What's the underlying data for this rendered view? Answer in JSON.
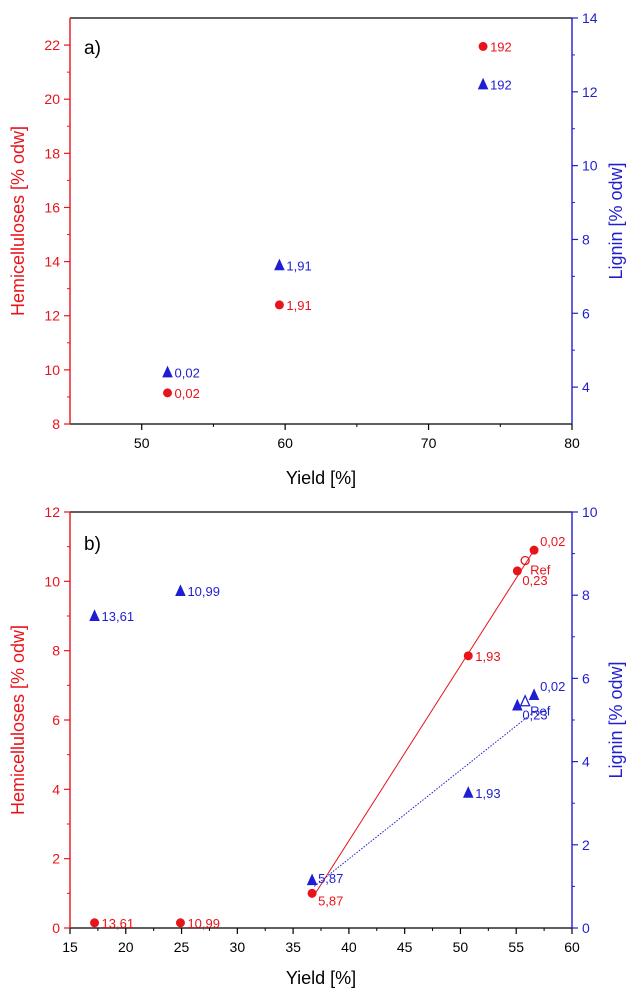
{
  "chart_data": [
    {
      "type": "scatter",
      "panel_label": "a)",
      "xlabel": "Yield [%]",
      "ylabel_left": "Hemicelluloses [% odw]",
      "ylabel_right": "Lignin [% odw]",
      "xlim": [
        45,
        80
      ],
      "ylim_left": [
        8,
        23
      ],
      "ylim_right": [
        3,
        14
      ],
      "x_ticks": [
        50,
        60,
        70,
        80
      ],
      "y_left_ticks": [
        8,
        10,
        12,
        14,
        16,
        18,
        20,
        22
      ],
      "y_right_ticks": [
        4,
        6,
        8,
        10,
        12,
        14
      ],
      "colors": {
        "left": "#e8141b",
        "right": "#1f1fd1",
        "axis": "#000000"
      },
      "series": [
        {
          "axis": "left",
          "marker": "circle",
          "points": [
            {
              "x": 51.8,
              "y": 9.15,
              "label": "0,02"
            },
            {
              "x": 59.6,
              "y": 12.4,
              "label": "1,91"
            },
            {
              "x": 73.8,
              "y": 21.95,
              "label": "192"
            }
          ]
        },
        {
          "axis": "right",
          "marker": "triangle",
          "points": [
            {
              "x": 51.8,
              "y": 4.4,
              "label": "0,02"
            },
            {
              "x": 59.6,
              "y": 7.3,
              "label": "1,91"
            },
            {
              "x": 73.8,
              "y": 12.2,
              "label": "192"
            }
          ]
        }
      ],
      "lines": []
    },
    {
      "type": "scatter",
      "panel_label": "b)",
      "xlabel": "Yield [%]",
      "ylabel_left": "Hemicelluloses [% odw]",
      "ylabel_right": "Lignin [% odw]",
      "xlim": [
        15,
        60
      ],
      "ylim_left": [
        0,
        12
      ],
      "ylim_right": [
        0,
        10
      ],
      "x_ticks": [
        15,
        20,
        25,
        30,
        35,
        40,
        45,
        50,
        55,
        60
      ],
      "y_left_ticks": [
        0,
        2,
        4,
        6,
        8,
        10,
        12
      ],
      "y_right_ticks": [
        0,
        2,
        4,
        6,
        8,
        10
      ],
      "colors": {
        "left": "#e8141b",
        "right": "#1f1fd1",
        "axis": "#000000"
      },
      "series": [
        {
          "axis": "left",
          "marker": "circle",
          "points": [
            {
              "x": 17.2,
              "y": 0.15,
              "label": "13,61"
            },
            {
              "x": 24.9,
              "y": 0.15,
              "label": "10,99"
            },
            {
              "x": 36.7,
              "y": 1.0,
              "label": "5,87"
            },
            {
              "x": 50.7,
              "y": 7.85,
              "label": "1,93"
            },
            {
              "x": 55.1,
              "y": 10.3,
              "label": "0,23"
            },
            {
              "x": 56.6,
              "y": 10.9,
              "label": "0,02"
            },
            {
              "x": 55.8,
              "y": 10.6,
              "label": "Ref",
              "open": true
            }
          ]
        },
        {
          "axis": "right",
          "marker": "triangle",
          "points": [
            {
              "x": 17.2,
              "y": 7.5,
              "label": "13,61"
            },
            {
              "x": 24.9,
              "y": 8.1,
              "label": "10,99"
            },
            {
              "x": 36.7,
              "y": 1.15,
              "label": "5,87"
            },
            {
              "x": 50.7,
              "y": 3.25,
              "label": "1,93"
            },
            {
              "x": 55.1,
              "y": 5.35,
              "label": "0,23"
            },
            {
              "x": 56.6,
              "y": 5.6,
              "label": "0,02"
            },
            {
              "x": 55.8,
              "y": 5.45,
              "label": "Ref",
              "open": true
            }
          ]
        }
      ],
      "lines": [
        {
          "axis": "left",
          "from": [
            36.9,
            0.95
          ],
          "to": [
            56.6,
            10.9
          ],
          "style": "solid"
        },
        {
          "axis": "right",
          "from": [
            36.9,
            1.0
          ],
          "to": [
            56.6,
            5.2
          ],
          "style": "dotted"
        }
      ]
    }
  ]
}
